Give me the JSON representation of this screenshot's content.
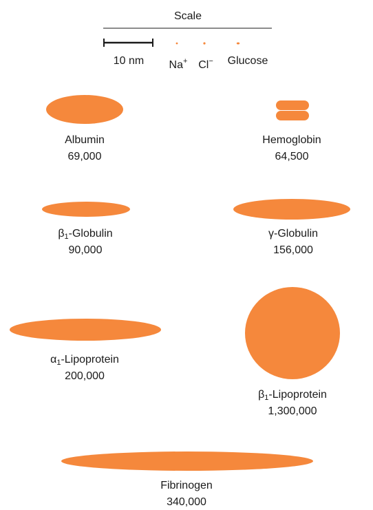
{
  "scale": {
    "title": "Scale",
    "bar_label": "10 nm",
    "ions": [
      {
        "text": "Na",
        "sup": "+"
      },
      {
        "text": "Cl",
        "sup": "−"
      },
      {
        "text": "Glucose",
        "sup": ""
      }
    ]
  },
  "colors": {
    "molecule": "#f5883c",
    "ion_marker": "#f5883c",
    "text": "#1a1a1a"
  },
  "molecules": [
    {
      "name": "Albumin",
      "greek": "",
      "sub": "",
      "weight": "69,000",
      "shape": "ellipse"
    },
    {
      "name": "Hemoglobin",
      "greek": "",
      "sub": "",
      "weight": "64,500",
      "shape": "stacked-tetramer"
    },
    {
      "name": "-Globulin",
      "greek": "β",
      "sub": "1",
      "weight": "90,000",
      "shape": "ellipse"
    },
    {
      "name": "-Globulin",
      "greek": "γ",
      "sub": "",
      "weight": "156,000",
      "shape": "ellipse"
    },
    {
      "name": "-Lipoprotein",
      "greek": "α",
      "sub": "1",
      "weight": "200,000",
      "shape": "ellipse"
    },
    {
      "name": "-Lipoprotein",
      "greek": "β",
      "sub": "1",
      "weight": "1,300,000",
      "shape": "circle"
    },
    {
      "name": "Fibrinogen",
      "greek": "",
      "sub": "",
      "weight": "340,000",
      "shape": "ellipse"
    }
  ]
}
